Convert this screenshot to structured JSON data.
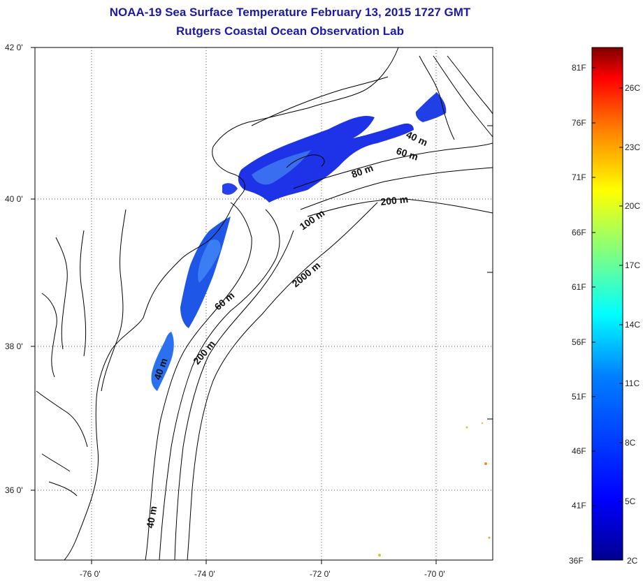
{
  "title": "NOAA-19 Sea Surface Temperature February 13, 2015 1727 GMT",
  "subtitle": "Rutgers Coastal Ocean Observation Lab",
  "map": {
    "lat_labels": [
      "42 0'",
      "40 0'",
      "38 0'",
      "36 0'"
    ],
    "lon_labels": [
      "-76 0'",
      "-74 0'",
      "-72 0'",
      "-70 0'"
    ],
    "lon_range": [
      -77,
      -69
    ],
    "lat_range": [
      35,
      42
    ],
    "contour_labels": [
      "40 m",
      "60 m",
      "80 m",
      "200 m",
      "100 m",
      "2000 m",
      "60 m",
      "200 m",
      "40 m",
      "40 m"
    ]
  },
  "colorbar": {
    "fahrenheit_labels": [
      "81F",
      "76F",
      "71F",
      "66F",
      "61F",
      "56F",
      "51F",
      "46F",
      "41F",
      "36F"
    ],
    "celsius_labels": [
      "26C",
      "23C",
      "20C",
      "17C",
      "14C",
      "11C",
      "8C",
      "5C",
      "2C"
    ],
    "colors": [
      "#7f0000",
      "#ff0000",
      "#ff8000",
      "#ffff00",
      "#80ff80",
      "#00ffff",
      "#0080ff",
      "#0000ff",
      "#00008f"
    ]
  }
}
